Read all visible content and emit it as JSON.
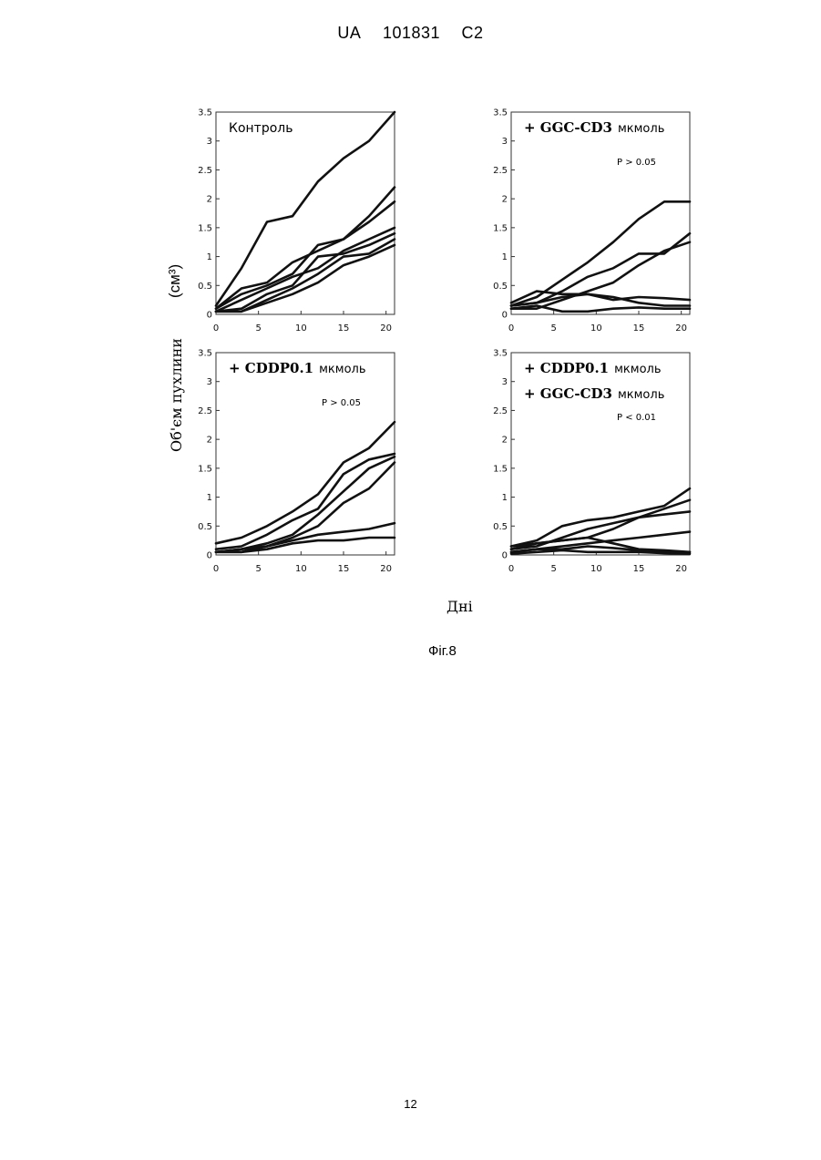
{
  "header": {
    "country": "UA",
    "number": "101831",
    "kind": "C2"
  },
  "y_axis_label": "Об'єм пухлини",
  "y_axis_unit": "(см³)",
  "x_axis_label": "Дні",
  "figure_caption": "Фіг.8",
  "page_number": "12",
  "chart_data": [
    {
      "type": "line",
      "title": "Контроль",
      "subtitle": "",
      "p_value": "",
      "xlim": [
        0,
        21
      ],
      "ylim": [
        0,
        3.5
      ],
      "xticks": [
        "0",
        "5",
        "10",
        "15",
        "20"
      ],
      "yticks": [
        "0",
        "0.5",
        "1",
        "1.5",
        "2",
        "2.5",
        "3",
        "3.5"
      ],
      "series": [
        {
          "x": [
            0,
            3,
            6,
            9,
            12,
            15,
            18,
            21
          ],
          "y": [
            0.15,
            0.8,
            1.6,
            1.7,
            2.3,
            2.7,
            3.0,
            3.5
          ]
        },
        {
          "x": [
            0,
            3,
            6,
            9,
            12,
            15,
            18,
            21
          ],
          "y": [
            0.1,
            0.45,
            0.55,
            0.9,
            1.1,
            1.3,
            1.7,
            2.2
          ]
        },
        {
          "x": [
            0,
            3,
            6,
            9,
            12,
            15,
            18,
            21
          ],
          "y": [
            0.1,
            0.35,
            0.5,
            0.7,
            1.2,
            1.3,
            1.6,
            1.95
          ]
        },
        {
          "x": [
            0,
            3,
            6,
            9,
            12,
            15,
            18,
            21
          ],
          "y": [
            0.05,
            0.25,
            0.45,
            0.65,
            0.8,
            1.1,
            1.3,
            1.5
          ]
        },
        {
          "x": [
            0,
            3,
            6,
            9,
            12,
            15,
            18,
            21
          ],
          "y": [
            0.05,
            0.1,
            0.35,
            0.5,
            1.0,
            1.05,
            1.2,
            1.4
          ]
        },
        {
          "x": [
            0,
            3,
            6,
            9,
            12,
            15,
            18,
            21
          ],
          "y": [
            0.05,
            0.05,
            0.25,
            0.45,
            0.7,
            1.0,
            1.05,
            1.3
          ]
        },
        {
          "x": [
            0,
            3,
            6,
            9,
            12,
            15,
            18,
            21
          ],
          "y": [
            0.05,
            0.05,
            0.2,
            0.35,
            0.55,
            0.85,
            1.0,
            1.2
          ]
        }
      ]
    },
    {
      "type": "line",
      "title": "+ GGC-CD3",
      "subtitle": "мкмоль",
      "p_value": "P > 0.05",
      "xlim": [
        0,
        21
      ],
      "ylim": [
        0,
        3.5
      ],
      "xticks": [
        "0",
        "5",
        "10",
        "15",
        "20"
      ],
      "yticks": [
        "0",
        "0.5",
        "1",
        "1.5",
        "2",
        "2.5",
        "3",
        "3.5"
      ],
      "series": [
        {
          "x": [
            0,
            3,
            6,
            9,
            12,
            15,
            18,
            21
          ],
          "y": [
            0.15,
            0.3,
            0.6,
            0.9,
            1.25,
            1.65,
            1.95,
            1.95
          ]
        },
        {
          "x": [
            0,
            3,
            6,
            9,
            12,
            15,
            18,
            21
          ],
          "y": [
            0.15,
            0.2,
            0.4,
            0.65,
            0.8,
            1.05,
            1.05,
            1.4
          ]
        },
        {
          "x": [
            0,
            3,
            6,
            9,
            12,
            15,
            18,
            21
          ],
          "y": [
            0.1,
            0.1,
            0.25,
            0.4,
            0.55,
            0.85,
            1.1,
            1.25
          ]
        },
        {
          "x": [
            0,
            3,
            6,
            9,
            12,
            15,
            18,
            21
          ],
          "y": [
            0.2,
            0.4,
            0.35,
            0.35,
            0.25,
            0.3,
            0.28,
            0.25
          ]
        },
        {
          "x": [
            0,
            3,
            6,
            9,
            12,
            15,
            18,
            21
          ],
          "y": [
            0.15,
            0.2,
            0.3,
            0.35,
            0.3,
            0.2,
            0.15,
            0.15
          ]
        },
        {
          "x": [
            0,
            3,
            6,
            9,
            12,
            15,
            18,
            21
          ],
          "y": [
            0.1,
            0.15,
            0.05,
            0.05,
            0.1,
            0.12,
            0.1,
            0.1
          ]
        }
      ]
    },
    {
      "type": "line",
      "title": "+ CDDP0.1",
      "subtitle": "мкмоль",
      "p_value": "P > 0.05",
      "xlim": [
        0,
        21
      ],
      "ylim": [
        0,
        3.5
      ],
      "xticks": [
        "0",
        "5",
        "10",
        "15",
        "20"
      ],
      "yticks": [
        "0",
        "0.5",
        "1",
        "1.5",
        "2",
        "2.5",
        "3",
        "3.5"
      ],
      "series": [
        {
          "x": [
            0,
            3,
            6,
            9,
            12,
            15,
            18,
            21
          ],
          "y": [
            0.2,
            0.3,
            0.5,
            0.75,
            1.05,
            1.6,
            1.85,
            2.3
          ]
        },
        {
          "x": [
            0,
            3,
            6,
            9,
            12,
            15,
            18,
            21
          ],
          "y": [
            0.1,
            0.15,
            0.35,
            0.6,
            0.8,
            1.4,
            1.65,
            1.75
          ]
        },
        {
          "x": [
            0,
            3,
            6,
            9,
            12,
            15,
            18,
            21
          ],
          "y": [
            0.05,
            0.1,
            0.2,
            0.35,
            0.7,
            1.1,
            1.5,
            1.7
          ]
        },
        {
          "x": [
            0,
            3,
            6,
            9,
            12,
            15,
            18,
            21
          ],
          "y": [
            0.05,
            0.05,
            0.15,
            0.3,
            0.5,
            0.9,
            1.15,
            1.6
          ]
        },
        {
          "x": [
            0,
            3,
            6,
            9,
            12,
            15,
            18,
            21
          ],
          "y": [
            0.05,
            0.1,
            0.15,
            0.25,
            0.35,
            0.4,
            0.45,
            0.55
          ]
        },
        {
          "x": [
            0,
            3,
            6,
            9,
            12,
            15,
            18,
            21
          ],
          "y": [
            0.05,
            0.05,
            0.1,
            0.2,
            0.25,
            0.25,
            0.3,
            0.3
          ]
        }
      ]
    },
    {
      "type": "line",
      "title": "+ CDDP0.1",
      "subtitle": "мкмоль",
      "title_line2": "+ GGC-CD3",
      "subtitle_line2": "мкмоль",
      "p_value": "P < 0.01",
      "xlim": [
        0,
        21
      ],
      "ylim": [
        0,
        3.5
      ],
      "xticks": [
        "0",
        "5",
        "10",
        "15",
        "20"
      ],
      "yticks": [
        "0",
        "0.5",
        "1",
        "1.5",
        "2",
        "2.5",
        "3",
        "3.5"
      ],
      "series": [
        {
          "x": [
            0,
            3,
            6,
            9,
            12,
            15,
            18,
            21
          ],
          "y": [
            0.15,
            0.25,
            0.5,
            0.6,
            0.65,
            0.75,
            0.85,
            1.15
          ]
        },
        {
          "x": [
            0,
            3,
            6,
            9,
            12,
            15,
            18,
            21
          ],
          "y": [
            0.1,
            0.2,
            0.25,
            0.3,
            0.45,
            0.65,
            0.8,
            0.95
          ]
        },
        {
          "x": [
            0,
            3,
            6,
            9,
            12,
            15,
            18,
            21
          ],
          "y": [
            0.1,
            0.15,
            0.3,
            0.45,
            0.55,
            0.65,
            0.7,
            0.75
          ]
        },
        {
          "x": [
            0,
            3,
            6,
            9,
            12,
            15,
            18,
            21
          ],
          "y": [
            0.05,
            0.1,
            0.15,
            0.2,
            0.25,
            0.3,
            0.35,
            0.4
          ]
        },
        {
          "x": [
            0,
            3,
            6,
            9,
            12,
            15,
            18,
            21
          ],
          "y": [
            0.15,
            0.2,
            0.25,
            0.3,
            0.2,
            0.1,
            0.08,
            0.05
          ]
        },
        {
          "x": [
            0,
            3,
            6,
            9,
            12,
            15,
            18,
            21
          ],
          "y": [
            0.05,
            0.1,
            0.1,
            0.15,
            0.12,
            0.08,
            0.05,
            0.05
          ]
        },
        {
          "x": [
            0,
            3,
            6,
            9,
            12,
            15,
            18,
            21
          ],
          "y": [
            0.02,
            0.05,
            0.08,
            0.05,
            0.05,
            0.05,
            0.03,
            0.02
          ]
        }
      ]
    }
  ]
}
